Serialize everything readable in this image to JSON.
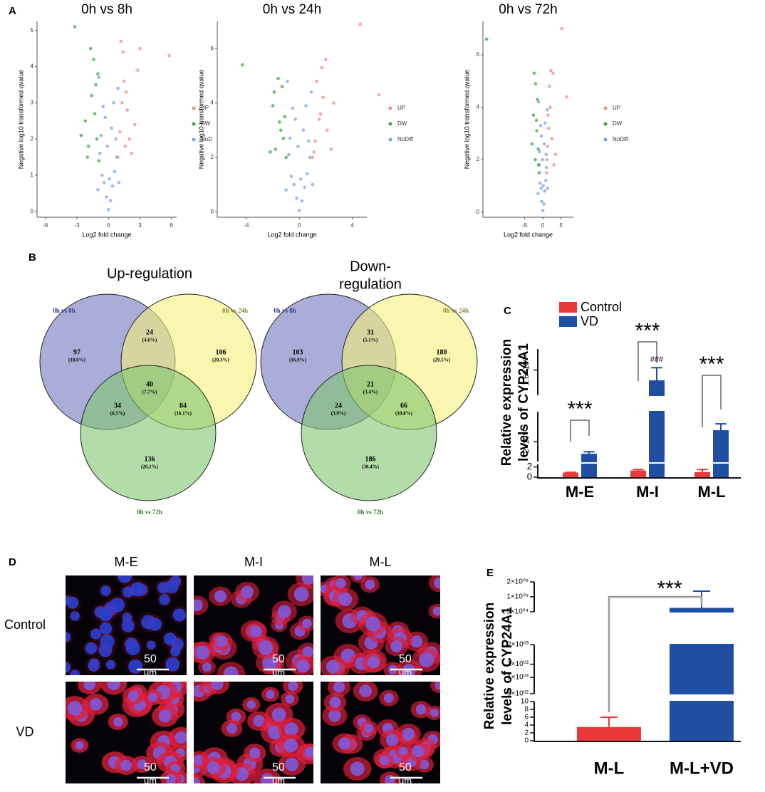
{
  "panels": [
    "A",
    "B",
    "C",
    "D",
    "E"
  ],
  "chart_data": [
    {
      "type": "scatter",
      "title": "0h vs 8h",
      "xlabel": "Log2 fold change",
      "ylabel": "Negative log10 transformed qvalue",
      "xlim": [
        -6.8,
        6.5
      ],
      "xticks": [
        -6,
        -3,
        0,
        3,
        6
      ],
      "ylim": [
        -0.16,
        5.25
      ],
      "yticks": [
        0,
        1,
        2,
        3,
        4,
        5
      ],
      "series": [
        {
          "name": "UP",
          "color": "#f08a8a",
          "x": [
            0.9,
            1.1,
            1.3,
            1.5,
            1.8,
            2.0,
            2.2,
            1.4,
            1.7,
            2.5,
            3.0,
            5.8,
            1.2,
            1.6,
            2.8
          ],
          "values": [
            1.5,
            2.2,
            3.0,
            3.6,
            2.8,
            2.0,
            1.6,
            4.4,
            3.3,
            2.4,
            4.5,
            4.3,
            4.7,
            1.8,
            3.9
          ]
        },
        {
          "name": "DW",
          "color": "#3aa845",
          "x": [
            -0.9,
            -1.1,
            -1.3,
            -1.6,
            -1.9,
            -2.2,
            -1.0,
            -1.4,
            -3.2,
            -2.0,
            -1.2,
            -2.6,
            -1.7
          ],
          "values": [
            1.4,
            2.0,
            2.7,
            3.2,
            1.8,
            2.5,
            3.8,
            4.2,
            5.1,
            1.5,
            3.5,
            2.1,
            4.5
          ]
        },
        {
          "name": "NoD",
          "color": "#7aa6e0",
          "x": [
            0,
            0.2,
            -0.2,
            0.4,
            -0.4,
            0.6,
            -0.6,
            0.8,
            -0.8,
            0.3,
            -0.3,
            0.5,
            -0.5,
            0.1,
            -0.1,
            0.7,
            -0.7,
            1.0,
            -1.0,
            0.9,
            -0.9
          ],
          "values": [
            0.05,
            0.3,
            0.4,
            0.7,
            0.8,
            1.1,
            1.0,
            1.5,
            1.6,
            2.3,
            2.6,
            3.0,
            2.9,
            0.9,
            1.8,
            2.0,
            2.1,
            0.8,
            0.6,
            3.4,
            3.7
          ]
        }
      ]
    },
    {
      "type": "scatter",
      "title": "0h vs 24h",
      "xlabel": "Log2 fold change",
      "ylabel": "Negative log10 transformed qvalue",
      "xlim": [
        -6.2,
        5.1
      ],
      "xticks": [
        -4,
        0,
        4
      ],
      "ylim": [
        -0.2,
        7.0
      ],
      "yticks": [
        0,
        2,
        4,
        6
      ],
      "series": [
        {
          "name": "UP",
          "color": "#f08a8a",
          "x": [
            1.0,
            1.2,
            1.5,
            1.8,
            2.1,
            2.4,
            1.3,
            1.7,
            2.0,
            4.6,
            6.0,
            1.1,
            2.6,
            1.6
          ],
          "values": [
            2.0,
            2.6,
            3.4,
            4.2,
            3.0,
            2.3,
            4.8,
            5.3,
            5.6,
            6.9,
            4.3,
            2.2,
            4.0,
            3.6
          ]
        },
        {
          "name": "DW",
          "color": "#3aa845",
          "x": [
            -1.0,
            -1.2,
            -1.5,
            -1.8,
            -2.0,
            -1.3,
            -1.6,
            -4.3,
            -2.2,
            -1.1,
            -1.9,
            -1.4
          ],
          "values": [
            2.0,
            2.7,
            3.3,
            2.3,
            3.9,
            4.6,
            4.9,
            5.4,
            2.2,
            3.5,
            4.4,
            3.0
          ]
        },
        {
          "name": "NoDiff",
          "color": "#7aa6e0",
          "x": [
            0,
            0.2,
            -0.2,
            0.4,
            -0.4,
            0.6,
            -0.6,
            0.8,
            -0.8,
            0.3,
            -0.3,
            0.5,
            -0.5,
            0.1,
            -0.1,
            0.7,
            -0.7,
            1.0,
            -1.0,
            0.9,
            -0.9
          ],
          "values": [
            0.05,
            0.4,
            0.5,
            0.9,
            1.0,
            1.4,
            1.3,
            2.0,
            2.1,
            3.0,
            3.4,
            3.9,
            3.8,
            1.2,
            2.4,
            2.6,
            2.7,
            1.0,
            0.8,
            4.4,
            4.8
          ]
        }
      ]
    },
    {
      "type": "scatter",
      "title": "0h vs 72h",
      "xlabel": "Log2 fold change",
      "ylabel": "Negative log10 transformed qvalue",
      "xlim": [
        -16.5,
        8.4
      ],
      "xticks": [
        -5,
        0,
        5
      ],
      "ylim": [
        -0.2,
        7.28
      ],
      "yticks": [
        0,
        2,
        4,
        6
      ],
      "series": [
        {
          "name": "UP",
          "color": "#f08a8a",
          "x": [
            1.0,
            1.3,
            1.6,
            2.0,
            2.5,
            3.0,
            1.8,
            2.2,
            5.2,
            6.5,
            1.4,
            2.8,
            3.5,
            1.1
          ],
          "values": [
            1.5,
            2.5,
            3.2,
            4.0,
            2.8,
            1.8,
            4.8,
            5.4,
            7.0,
            4.4,
            3.7,
            5.3,
            2.2,
            2.0
          ]
        },
        {
          "name": "DW",
          "color": "#3aa845",
          "x": [
            -1.0,
            -1.3,
            -1.7,
            -2.1,
            -2.6,
            -1.5,
            -2.0,
            -15.5,
            -3.0,
            -1.2,
            -2.4,
            -1.8
          ],
          "values": [
            1.5,
            2.4,
            3.1,
            2.0,
            3.7,
            4.3,
            4.9,
            6.6,
            2.6,
            1.8,
            5.3,
            3.5
          ]
        },
        {
          "name": "NoDiff",
          "color": "#7aa6e0",
          "x": [
            0,
            0.3,
            -0.3,
            0.5,
            -0.5,
            0.8,
            -0.8,
            1.0,
            -1.0,
            0.4,
            -0.4,
            0.6,
            -0.6,
            0.1,
            -0.1,
            0.9,
            -0.9,
            1.3,
            -1.3,
            1.2,
            -1.2
          ],
          "values": [
            0.05,
            0.3,
            0.4,
            0.8,
            0.9,
            1.2,
            1.1,
            1.7,
            1.8,
            2.6,
            2.9,
            3.4,
            3.3,
            1.0,
            2.0,
            2.2,
            2.3,
            0.9,
            0.7,
            3.9,
            4.2
          ]
        }
      ]
    },
    {
      "type": "bar",
      "ylabel": [
        "Relative expression",
        "levels of CYP24A1"
      ],
      "categories": [
        "M-E",
        "M-I",
        "M-L"
      ],
      "ylim_segments": [
        [
          0,
          2.5
        ],
        [
          1000,
          3500
        ],
        [
          10000,
          21000
        ]
      ],
      "yscale_segments": [
        "linear",
        "linear",
        "linear"
      ],
      "yticks": [
        0,
        2,
        {
          "value": 2000,
          "label": "2×10⁰³"
        },
        {
          "value": 16000,
          "label": "1.6×10⁰⁴"
        }
      ],
      "series": [
        {
          "name": "Control",
          "color": "#e8393b",
          "values": [
            0.9,
            1.3,
            1.0
          ],
          "errors": [
            0.05,
            0.2,
            0.5
          ]
        },
        {
          "name": "VD",
          "color": "#1f4ea3",
          "values": [
            1390,
            13550,
            2570
          ],
          "errors": [
            100,
            3000,
            320
          ]
        }
      ],
      "annotations": [
        "***",
        "***",
        "***",
        "###"
      ]
    },
    {
      "type": "bar",
      "ylabel": [
        "Relative expression",
        "levels of CYP24A1"
      ],
      "categories": [
        "M-L",
        "M-L+VD"
      ],
      "ylim_segments": [
        [
          0,
          10
        ],
        [
          500,
          2000
        ],
        [
          50000,
          200000
        ]
      ],
      "yscale_segments": [
        "linear",
        "linear",
        "log"
      ],
      "yticks": [
        0,
        2,
        4,
        6,
        8,
        10,
        {
          "value": 500,
          "label": "5×10⁰²"
        },
        {
          "value": 1000,
          "label": "1×10⁰³"
        },
        {
          "value": 1400,
          "label": "1×10⁰³"
        },
        {
          "value": 2000,
          "label": "2×10⁰³"
        },
        {
          "value": 50000,
          "label": "5×10⁰⁴"
        },
        {
          "value": 100000,
          "label": "1×10⁰⁵"
        },
        {
          "value": 200000,
          "label": "2×10⁰⁵"
        }
      ],
      "colors": [
        "#e8393b",
        "#1f4ea3"
      ],
      "values": [
        3.5,
        60000
      ],
      "errors": [
        2.5,
        70000
      ],
      "annotations": [
        "***"
      ]
    }
  ],
  "venn": [
    {
      "title_lines": [
        "Up-regulation"
      ],
      "sets": [
        "0h vs 8h",
        "0h vs 24h",
        "0h vs 72h"
      ],
      "regions": [
        {
          "count": 97,
          "percent": "(18.6%)"
        },
        {
          "count": 24,
          "percent": "(4.6%)"
        },
        {
          "count": 106,
          "percent": "(20.3%)"
        },
        {
          "count": 40,
          "percent": "(7.7%)"
        },
        {
          "count": 34,
          "percent": "(6.5%)"
        },
        {
          "count": 84,
          "percent": "(16.1%)"
        },
        {
          "count": 136,
          "percent": "(26.1%)"
        }
      ]
    },
    {
      "title_lines": [
        "Down-",
        "regulation"
      ],
      "sets": [
        "0h vs 8h",
        "0h vs 24h",
        "0h vs 72h"
      ],
      "regions": [
        {
          "count": 103,
          "percent": "(16.9%)"
        },
        {
          "count": 31,
          "percent": "(5.1%)"
        },
        {
          "count": 180,
          "percent": "(29.5%)"
        },
        {
          "count": 21,
          "percent": "(3.4%)"
        },
        {
          "count": 24,
          "percent": "(3.9%)"
        },
        {
          "count": 66,
          "percent": "(10.8%)"
        },
        {
          "count": 186,
          "percent": "(30.4%)"
        }
      ]
    }
  ],
  "micrographs": {
    "columns": [
      "M-E",
      "M-I",
      "M-L"
    ],
    "rows": [
      "Control",
      "VD"
    ],
    "scale_value": 50,
    "scale_unit": "um"
  }
}
